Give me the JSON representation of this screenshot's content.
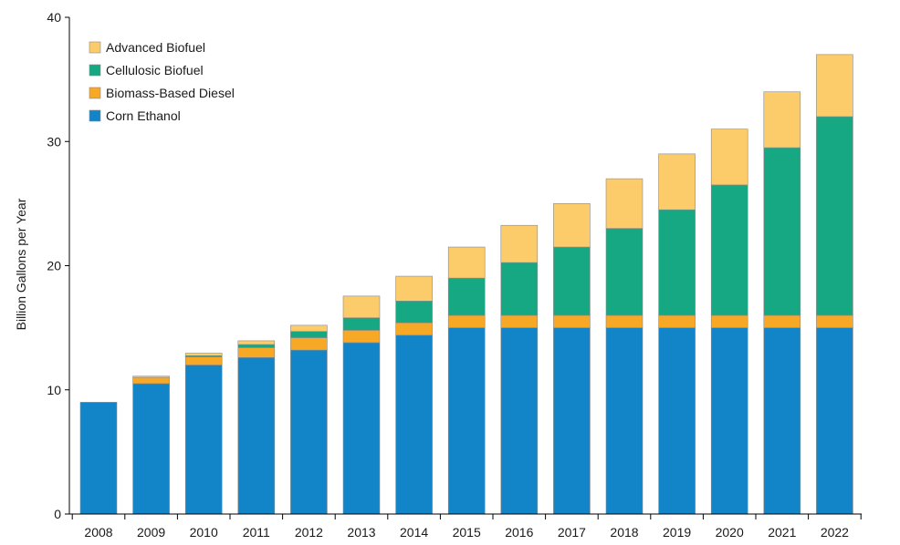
{
  "chart_data": {
    "type": "bar",
    "stacked": true,
    "title": "",
    "xlabel": "",
    "ylabel": "Billion Gallons per Year",
    "ylim": [
      0,
      40
    ],
    "yticks": [
      0,
      10,
      20,
      30,
      40
    ],
    "grid": false,
    "legend_position": "top-left",
    "categories": [
      "2008",
      "2009",
      "2010",
      "2011",
      "2012",
      "2013",
      "2014",
      "2015",
      "2016",
      "2017",
      "2018",
      "2019",
      "2020",
      "2021",
      "2022"
    ],
    "series": [
      {
        "name": "Corn Ethanol",
        "color": "#1185c8",
        "values": [
          9.0,
          10.5,
          12.0,
          12.6,
          13.2,
          13.8,
          14.4,
          15.0,
          15.0,
          15.0,
          15.0,
          15.0,
          15.0,
          15.0,
          15.0
        ]
      },
      {
        "name": "Biomass-Based Diesel",
        "color": "#f7a825",
        "values": [
          0.0,
          0.5,
          0.65,
          0.8,
          1.0,
          1.0,
          1.0,
          1.0,
          1.0,
          1.0,
          1.0,
          1.0,
          1.0,
          1.0,
          1.0
        ]
      },
      {
        "name": "Cellulosic Biofuel",
        "color": "#15a883",
        "values": [
          0.0,
          0.0,
          0.1,
          0.25,
          0.5,
          1.0,
          1.75,
          3.0,
          4.25,
          5.5,
          7.0,
          8.5,
          10.5,
          13.5,
          16.0
        ]
      },
      {
        "name": "Advanced Biofuel",
        "color": "#fccb6a",
        "values": [
          0.0,
          0.1,
          0.2,
          0.3,
          0.5,
          1.75,
          2.0,
          2.5,
          3.0,
          3.5,
          4.0,
          4.5,
          4.5,
          4.5,
          5.0
        ]
      }
    ],
    "legend_order": [
      "Advanced Biofuel",
      "Cellulosic Biofuel",
      "Biomass-Based Diesel",
      "Corn Ethanol"
    ]
  }
}
